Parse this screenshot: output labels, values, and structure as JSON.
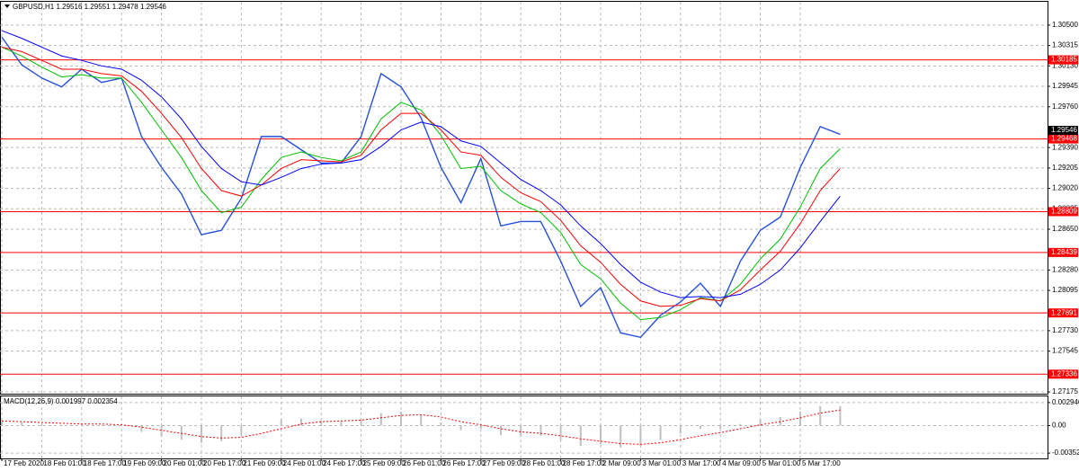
{
  "chart_data": [
    {
      "type": "line",
      "title": "GBPUSD,H1",
      "quote": [
        1.29516,
        1.29551,
        1.29478,
        1.29546
      ],
      "current_price": 1.29546,
      "current_color": "#000000",
      "categories": [
        "17 Feb 2020",
        null,
        "18 Feb 01:00",
        null,
        "18 Feb 17:00",
        null,
        "19 Feb 09:00",
        null,
        "20 Feb 01:00",
        null,
        "20 Feb 17:00",
        null,
        "21 Feb 09:00",
        null,
        "24 Feb 01:00",
        null,
        "24 Feb 17:00",
        null,
        "25 Feb 09:00",
        null,
        "26 Feb 01:00",
        null,
        "26 Feb 17:00",
        null,
        "27 Feb 09:00",
        null,
        "28 Feb 01:00",
        null,
        "28 Feb 17:00",
        null,
        "2 Mar 09:00",
        null,
        "3 Mar 01:00",
        null,
        "3 Mar 17:00",
        null,
        "4 Mar 09:00",
        null,
        "5 Mar 01:00",
        null,
        "5 Mar 17:00",
        null,
        null
      ],
      "series": [
        {
          "color": "#2850d8",
          "width": 1.4,
          "values": [
            1.3039,
            1.3014,
            1.3002,
            1.2994,
            1.301,
            1.2998,
            1.3002,
            1.2949,
            1.2921,
            1.2897,
            1.286,
            1.2864,
            1.2893,
            1.2949,
            1.2949,
            1.2937,
            1.2925,
            1.2925,
            1.2949,
            1.3006,
            1.2994,
            1.2966,
            1.2921,
            1.2889,
            1.2929,
            1.2868,
            1.2872,
            1.2872,
            1.2836,
            1.2795,
            1.2812,
            1.2771,
            1.2767,
            1.2787,
            1.2799,
            1.2816,
            1.2795,
            1.2836,
            1.2864,
            1.2876,
            1.2921,
            1.2958,
            1.2951
          ]
        },
        {
          "color": "#00c000",
          "width": 1,
          "values": [
            1.303,
            1.3022,
            1.3012,
            1.3003,
            1.3005,
            1.3002,
            1.3002,
            1.298,
            1.2955,
            1.293,
            1.29,
            1.288,
            1.2885,
            1.291,
            1.293,
            1.2935,
            1.293,
            1.2927,
            1.2935,
            1.2965,
            1.298,
            1.2973,
            1.295,
            1.292,
            1.2922,
            1.29,
            1.2888,
            1.288,
            1.2862,
            1.2833,
            1.282,
            1.2798,
            1.2783,
            1.2785,
            1.2792,
            1.2803,
            1.28,
            1.2815,
            1.2838,
            1.2856,
            1.2885,
            1.292,
            1.2938
          ]
        },
        {
          "color": "#ff0000",
          "width": 1,
          "values": [
            1.303,
            1.3026,
            1.3018,
            1.301,
            1.301,
            1.3006,
            1.3004,
            1.299,
            1.297,
            1.2948,
            1.292,
            1.29,
            1.2895,
            1.2905,
            1.292,
            1.2928,
            1.2927,
            1.2926,
            1.2932,
            1.2955,
            1.297,
            1.297,
            1.2955,
            1.2935,
            1.2932,
            1.2912,
            1.2898,
            1.289,
            1.2873,
            1.285,
            1.2835,
            1.2815,
            1.28,
            1.2795,
            1.2796,
            1.2802,
            1.28,
            1.281,
            1.2828,
            1.2845,
            1.287,
            1.29,
            1.292
          ]
        },
        {
          "color": "#0000ff",
          "width": 1,
          "values": [
            1.3045,
            1.3038,
            1.303,
            1.3022,
            1.3018,
            1.3013,
            1.301,
            1.3,
            1.2985,
            1.2965,
            1.294,
            1.292,
            1.2908,
            1.2905,
            1.2912,
            1.292,
            1.2924,
            1.2925,
            1.2928,
            1.294,
            1.2955,
            1.2962,
            1.2958,
            1.2945,
            1.294,
            1.2925,
            1.291,
            1.29,
            1.2887,
            1.2868,
            1.2852,
            1.2833,
            1.2817,
            1.2808,
            1.2803,
            1.2804,
            1.2803,
            1.2806,
            1.2815,
            1.2828,
            1.2848,
            1.2872,
            1.2895
          ]
        }
      ],
      "levels": [
        1.30185,
        1.29468,
        1.28809,
        1.28439,
        1.27891,
        1.27336
      ],
      "level_color": "#ff0000",
      "ylim": [
        1.27159,
        1.30711
      ],
      "yticks": [
        {
          "value": 1.305,
          "label": "1.30500"
        },
        {
          "value": 1.30315,
          "label": "1.30315"
        },
        {
          "value": 1.3013,
          "label": "1.30130"
        },
        {
          "value": 1.29945,
          "label": "1.29945"
        },
        {
          "value": 1.2976,
          "label": "1.29760"
        },
        {
          "value": 1.2939,
          "label": "1.29390"
        },
        {
          "value": 1.29205,
          "label": "1.29205"
        },
        {
          "value": 1.2902,
          "label": "1.29020"
        },
        {
          "value": 1.28835,
          "label": "1.28835"
        },
        {
          "value": 1.2865,
          "label": "1.28650"
        },
        {
          "value": 1.2828,
          "label": "1.28280"
        },
        {
          "value": 1.28095,
          "label": "1.28095"
        },
        {
          "value": 1.2773,
          "label": "1.27730"
        },
        {
          "value": 1.27545,
          "label": "1.27545"
        },
        {
          "value": 1.27175,
          "label": "1.27175"
        }
      ],
      "grid": true
    },
    {
      "type": "macd",
      "title": "MACD(12,26,9)",
      "quote": [
        0.001997,
        0.002354
      ],
      "series": [
        {
          "color": "#c0c0c0",
          "values": [
            0.0005,
            0.0004,
            0.0002,
            0.0001,
            0.0002,
            0.0001,
            0.0,
            -0.0008,
            -0.0014,
            -0.0018,
            -0.0022,
            -0.002,
            -0.0012,
            0.0,
            0.0008,
            0.0009,
            0.0006,
            0.0005,
            0.0008,
            0.0016,
            0.0018,
            0.0014,
            0.0004,
            -0.0006,
            -0.0004,
            -0.0012,
            -0.0014,
            -0.0013,
            -0.0018,
            -0.0026,
            -0.0024,
            -0.0028,
            -0.0026,
            -0.0018,
            -0.001,
            -0.0004,
            -0.0004,
            0.0002,
            0.0008,
            0.0011,
            0.0018,
            0.0025,
            0.0025
          ]
        },
        {
          "color": "#ff0000",
          "values": [
            0.0006,
            0.0005,
            0.0004,
            0.0003,
            0.0002,
            0.0002,
            0.0001,
            -0.0002,
            -0.0006,
            -0.001,
            -0.0014,
            -0.0016,
            -0.0015,
            -0.001,
            -0.0004,
            0.0002,
            0.0005,
            0.0006,
            0.0007,
            0.001,
            0.0013,
            0.0014,
            0.0011,
            0.0005,
            0.0001,
            -0.0004,
            -0.0008,
            -0.001,
            -0.0013,
            -0.0017,
            -0.002,
            -0.0023,
            -0.0024,
            -0.0022,
            -0.0018,
            -0.0013,
            -0.0009,
            -0.0004,
            0.0001,
            0.0005,
            0.001,
            0.0016,
            0.002
          ]
        }
      ],
      "ylim": [
        -0.004203,
        0.00374
      ],
      "yticks": [
        0.002946,
        {
          "value": 0,
          "label": "0.00"
        },
        -0.003522
      ],
      "grid": true
    }
  ]
}
